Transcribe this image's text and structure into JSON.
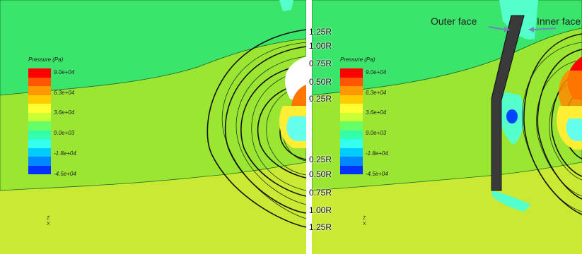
{
  "legend": {
    "title": "Pressure (Pa)",
    "ticks": [
      "9.0e+04",
      "6.3e+04",
      "3.6e+04",
      "9.0e+03",
      "-1.8e+04",
      "-4.5e+04"
    ],
    "colors": [
      "#ff0000",
      "#ff5500",
      "#ff9900",
      "#ffcc00",
      "#ffff33",
      "#ccff33",
      "#66ff66",
      "#33ffaa",
      "#33ffee",
      "#00ccff",
      "#0088ff",
      "#0033ff"
    ]
  },
  "radius_labels": {
    "upper": [
      "1.25R",
      "1.00R",
      "0.75R",
      "0.50R",
      "0.25R"
    ],
    "lower": [
      "0.25R",
      "0.50R",
      "0.75R",
      "1.00R",
      "1.25R"
    ]
  },
  "annotations": {
    "outer_face": "Outer face",
    "inner_face": "Inner face"
  },
  "triad": {
    "z": "Z",
    "x": "X"
  },
  "field_colors": {
    "upper": "#33ee66",
    "middle": "#99ee33",
    "lower": "#ccee33",
    "high": "#ff0000",
    "blade": "#2b2b2b"
  }
}
